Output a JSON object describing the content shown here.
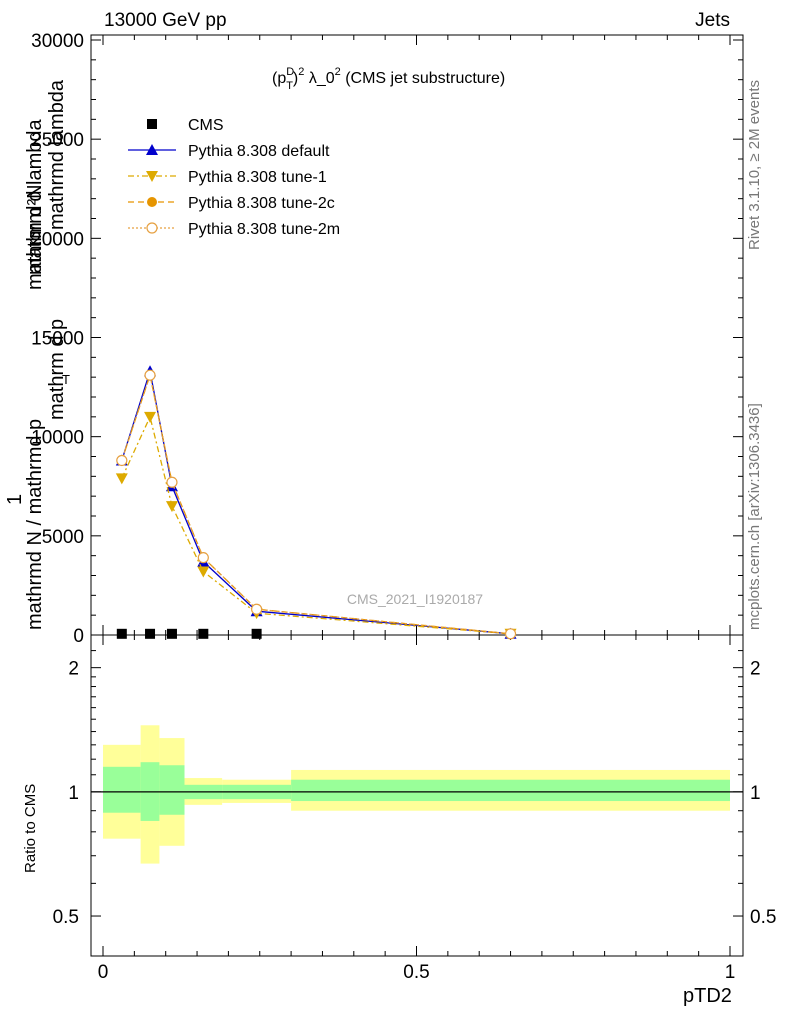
{
  "header": {
    "left": "13000 GeV pp",
    "right": "Jets"
  },
  "side_labels": {
    "rivet": "Rivet 3.1.10, ≥ 2M events",
    "mcplots": "mcplots.cern.ch [arXiv:1306.3436]"
  },
  "main_ylabel": {
    "numerator_top": "1",
    "denominator_bottom": "mathrmd N / mathrmd p",
    "sub_T": "T",
    "part2": "mathrmd lambda",
    "mathrm_dN": "mathrm d²N",
    "mathrm_dpT": "mathrm d p",
    "sub_T2": "T",
    "mathrm_dlambda": "mathrm d lambda"
  },
  "ratio_ylabel": "Ratio to CMS",
  "xlabel": "pTD2",
  "watermark": "CMS_2021_I1920187",
  "colors": {
    "default": "#0000cc",
    "tune1": "#ddaa00",
    "tune2c": "#e69500",
    "tune2m": "#e6a040",
    "band_inner": "#99ff99",
    "band_outer": "#ffff99"
  },
  "chart_data": [
    {
      "type": "line",
      "title": "(p_T^D)^2 λ_0^2 (CMS jet substructure)",
      "title_parts": {
        "a": "(p",
        "sup_D": "D",
        "sub_T": "T",
        "b": ")",
        "sup_2": "2",
        "c": " λ_0",
        "sup_2b": "2",
        "d": " (CMS jet substructure)"
      },
      "xlim": [
        0,
        1
      ],
      "ylim": [
        0,
        30000
      ],
      "xticks": [
        0,
        0.5,
        1
      ],
      "xtick_labels": [
        "0",
        "0.5",
        "1"
      ],
      "yticks": [
        0,
        5000,
        10000,
        15000,
        20000,
        25000,
        30000
      ],
      "ytick_labels": [
        "0",
        "5000",
        "10000",
        "15000",
        "20000",
        "25000",
        "30000"
      ],
      "legend_position": "top-left",
      "series": [
        {
          "name": "CMS",
          "marker": "square",
          "x": [
            0.03,
            0.075,
            0.11,
            0.16,
            0.245
          ],
          "y": [
            60,
            60,
            60,
            60,
            60
          ]
        },
        {
          "name": "Pythia 8.308 default",
          "marker": "triangle-up",
          "x": [
            0.03,
            0.075,
            0.11,
            0.16,
            0.245,
            0.65
          ],
          "y": [
            8800,
            13300,
            7500,
            3700,
            1200,
            60
          ]
        },
        {
          "name": "Pythia 8.308 tune-1",
          "marker": "triangle-down",
          "x": [
            0.03,
            0.075,
            0.11,
            0.16,
            0.245,
            0.65
          ],
          "y": [
            7900,
            11000,
            6500,
            3200,
            1100,
            60
          ]
        },
        {
          "name": "Pythia 8.308 tune-2c",
          "marker": "circle-filled",
          "x": [
            0.03,
            0.075,
            0.11,
            0.16,
            0.245,
            0.65
          ],
          "y": [
            8800,
            13100,
            7700,
            3900,
            1300,
            60
          ]
        },
        {
          "name": "Pythia 8.308 tune-2m",
          "marker": "circle-open",
          "x": [
            0.03,
            0.075,
            0.11,
            0.16,
            0.245,
            0.65
          ],
          "y": [
            8800,
            13100,
            7700,
            3900,
            1300,
            60
          ]
        }
      ]
    },
    {
      "type": "area",
      "ylabel": "Ratio to CMS",
      "xlim": [
        0,
        1
      ],
      "ylim": [
        0.4,
        2.4
      ],
      "log_y": true,
      "yticks": [
        0.5,
        1,
        2
      ],
      "ytick_labels": [
        "0.5",
        "1",
        "2"
      ],
      "bins": [
        {
          "x0": 0.0,
          "x1": 0.06,
          "inner": [
            0.89,
            1.15
          ],
          "outer": [
            0.77,
            1.3
          ]
        },
        {
          "x0": 0.06,
          "x1": 0.09,
          "inner": [
            0.85,
            1.18
          ],
          "outer": [
            0.67,
            1.45
          ]
        },
        {
          "x0": 0.09,
          "x1": 0.13,
          "inner": [
            0.88,
            1.16
          ],
          "outer": [
            0.74,
            1.35
          ]
        },
        {
          "x0": 0.13,
          "x1": 0.19,
          "inner": [
            0.96,
            1.04
          ],
          "outer": [
            0.93,
            1.08
          ]
        },
        {
          "x0": 0.19,
          "x1": 0.3,
          "inner": [
            0.96,
            1.04
          ],
          "outer": [
            0.94,
            1.07
          ]
        },
        {
          "x0": 0.3,
          "x1": 1.0,
          "inner": [
            0.95,
            1.07
          ],
          "outer": [
            0.9,
            1.13
          ]
        }
      ]
    }
  ]
}
